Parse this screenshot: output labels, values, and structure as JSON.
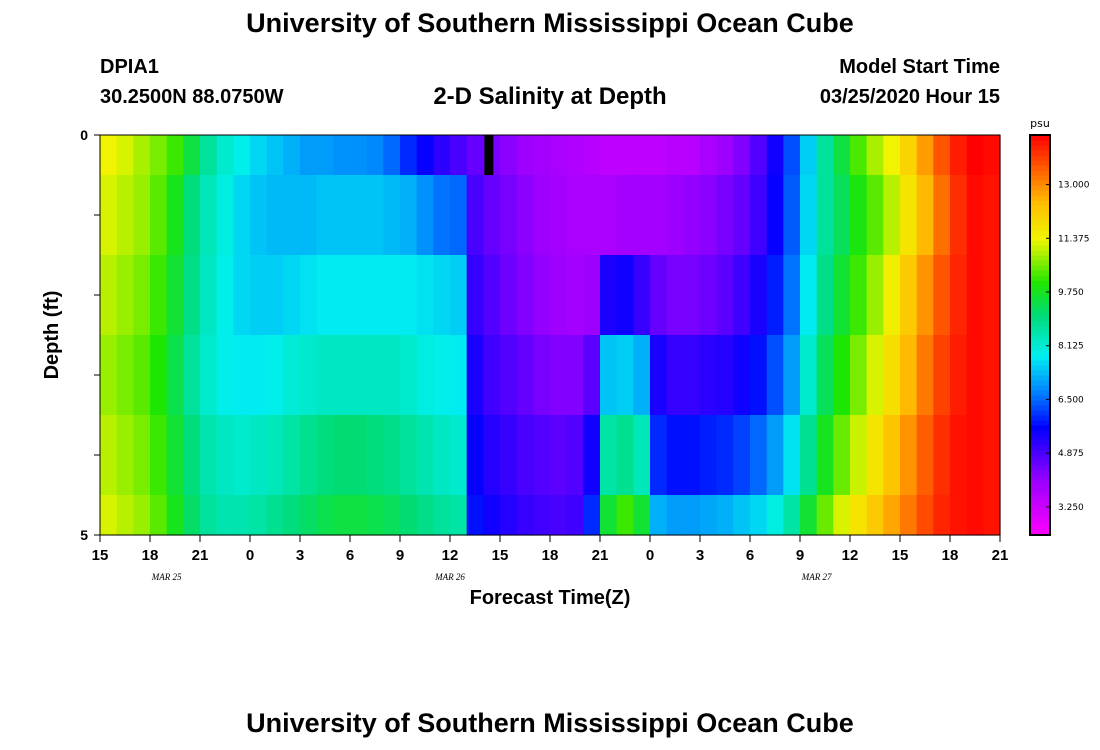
{
  "header": {
    "title": "University of Southern Mississippi Ocean Cube",
    "station_id": "DPIA1",
    "station_coords": "30.2500N 88.0750W",
    "chart_title": "2-D Salinity at Depth",
    "model_start_label": "Model Start Time",
    "model_start_value": "03/25/2020 Hour 15"
  },
  "footer": {
    "title": "University of Southern Mississippi Ocean Cube"
  },
  "chart_data": {
    "type": "heatmap",
    "xlabel": "Forecast Time(Z)",
    "ylabel": "Depth (ft)",
    "x_tick_labels": [
      "15",
      "18",
      "21",
      "0",
      "3",
      "6",
      "9",
      "12",
      "15",
      "18",
      "21",
      "0",
      "3",
      "6",
      "9",
      "12",
      "15",
      "18",
      "21"
    ],
    "date_labels": [
      {
        "label": "MAR 25",
        "hour_index": 4
      },
      {
        "label": "MAR 26",
        "hour_index": 21
      },
      {
        "label": "MAR 27",
        "hour_index": 43
      }
    ],
    "y_tick_labels": [
      "0",
      "5"
    ],
    "ylim": [
      0,
      5
    ],
    "hours": 54,
    "depth_levels": 5,
    "colorbar": {
      "unit": "psu",
      "tick_labels": [
        "3.250",
        "4.875",
        "6.500",
        "8.125",
        "9.750",
        "11.375",
        "13.000"
      ],
      "min": 2.4,
      "max": 14.5
    },
    "marker": {
      "hour_index": 23.3,
      "depth_level": 0
    },
    "rows": [
      {
        "depth_range": "0-0.5",
        "values": [
          11.4,
          11.2,
          10.9,
          10.6,
          10.2,
          9.5,
          8.7,
          8.2,
          7.9,
          7.6,
          7.4,
          7.2,
          7.0,
          7.0,
          6.9,
          6.9,
          6.8,
          6.5,
          6.0,
          5.6,
          5.2,
          4.9,
          4.6,
          4.4,
          4.2,
          4.0,
          3.9,
          3.8,
          3.7,
          3.6,
          3.5,
          3.5,
          3.5,
          3.5,
          3.6,
          3.6,
          3.8,
          4.0,
          4.3,
          4.8,
          5.5,
          6.3,
          7.5,
          8.7,
          9.5,
          10.3,
          10.9,
          11.4,
          12.0,
          12.8,
          13.6,
          14.2,
          14.5,
          14.4
        ]
      },
      {
        "depth_range": "0.5-1.5",
        "values": [
          11.2,
          11.0,
          10.8,
          10.4,
          9.8,
          9.0,
          8.4,
          8.0,
          7.6,
          7.4,
          7.3,
          7.3,
          7.3,
          7.4,
          7.4,
          7.4,
          7.4,
          7.3,
          7.2,
          6.9,
          6.6,
          6.5,
          4.9,
          4.6,
          4.4,
          4.2,
          4.0,
          3.9,
          3.8,
          3.8,
          3.8,
          3.9,
          3.9,
          3.9,
          4.0,
          4.1,
          4.2,
          4.4,
          4.6,
          5.0,
          5.6,
          6.4,
          7.6,
          8.7,
          9.3,
          9.9,
          10.4,
          11.0,
          11.7,
          12.5,
          13.3,
          14.0,
          14.4,
          14.3
        ]
      },
      {
        "depth_range": "1.5-2.5",
        "values": [
          11.0,
          10.8,
          10.6,
          10.2,
          9.6,
          8.9,
          8.3,
          7.9,
          7.6,
          7.5,
          7.5,
          7.6,
          7.7,
          7.8,
          7.8,
          7.8,
          7.8,
          7.8,
          7.8,
          7.7,
          7.6,
          7.5,
          5.1,
          4.8,
          4.5,
          4.3,
          4.1,
          4.0,
          3.9,
          4.0,
          5.4,
          5.5,
          5.1,
          4.6,
          4.4,
          4.4,
          4.5,
          4.7,
          5.0,
          5.4,
          5.9,
          6.6,
          7.8,
          8.9,
          9.6,
          10.2,
          10.8,
          11.5,
          12.2,
          12.9,
          13.6,
          14.1,
          14.4,
          14.3
        ]
      },
      {
        "depth_range": "2.5-3.5",
        "values": [
          10.8,
          10.6,
          10.4,
          10.0,
          9.4,
          8.7,
          8.2,
          7.9,
          7.8,
          7.8,
          7.9,
          8.1,
          8.2,
          8.3,
          8.3,
          8.3,
          8.3,
          8.3,
          8.2,
          8.0,
          7.9,
          7.8,
          5.4,
          5.0,
          4.8,
          4.6,
          4.4,
          4.3,
          4.3,
          4.7,
          7.4,
          7.5,
          7.2,
          5.4,
          5.1,
          5.1,
          5.2,
          5.3,
          5.5,
          5.8,
          6.3,
          7.0,
          8.2,
          9.3,
          10.0,
          10.6,
          11.2,
          11.8,
          12.5,
          13.2,
          13.8,
          14.2,
          14.4,
          14.3
        ]
      },
      {
        "depth_range": "3.5-4.5",
        "values": [
          11.0,
          10.8,
          10.6,
          10.2,
          9.6,
          9.0,
          8.5,
          8.3,
          8.2,
          8.3,
          8.4,
          8.6,
          8.8,
          9.0,
          9.1,
          9.1,
          9.0,
          8.9,
          8.7,
          8.5,
          8.3,
          8.2,
          5.6,
          5.3,
          5.1,
          4.9,
          4.8,
          4.7,
          4.8,
          5.5,
          8.6,
          8.8,
          8.4,
          6.0,
          5.8,
          5.8,
          5.9,
          6.0,
          6.2,
          6.5,
          7.0,
          7.7,
          8.8,
          9.8,
          10.5,
          11.1,
          11.7,
          12.3,
          12.9,
          13.5,
          14.0,
          14.3,
          14.4,
          14.3
        ]
      },
      {
        "depth_range": "4.5-5",
        "values": [
          11.2,
          11.0,
          10.8,
          10.4,
          9.8,
          9.2,
          8.7,
          8.5,
          8.5,
          8.6,
          8.8,
          9.0,
          9.2,
          9.4,
          9.5,
          9.5,
          9.4,
          9.3,
          9.1,
          8.9,
          8.7,
          8.6,
          5.8,
          5.5,
          5.3,
          5.1,
          5.0,
          4.9,
          5.0,
          6.0,
          9.6,
          10.2,
          9.6,
          7.2,
          7.0,
          7.0,
          7.1,
          7.2,
          7.4,
          7.6,
          8.0,
          8.6,
          9.6,
          10.5,
          11.2,
          11.7,
          12.2,
          12.7,
          13.2,
          13.7,
          14.1,
          14.3,
          14.4,
          14.3
        ]
      }
    ],
    "grid": false
  }
}
